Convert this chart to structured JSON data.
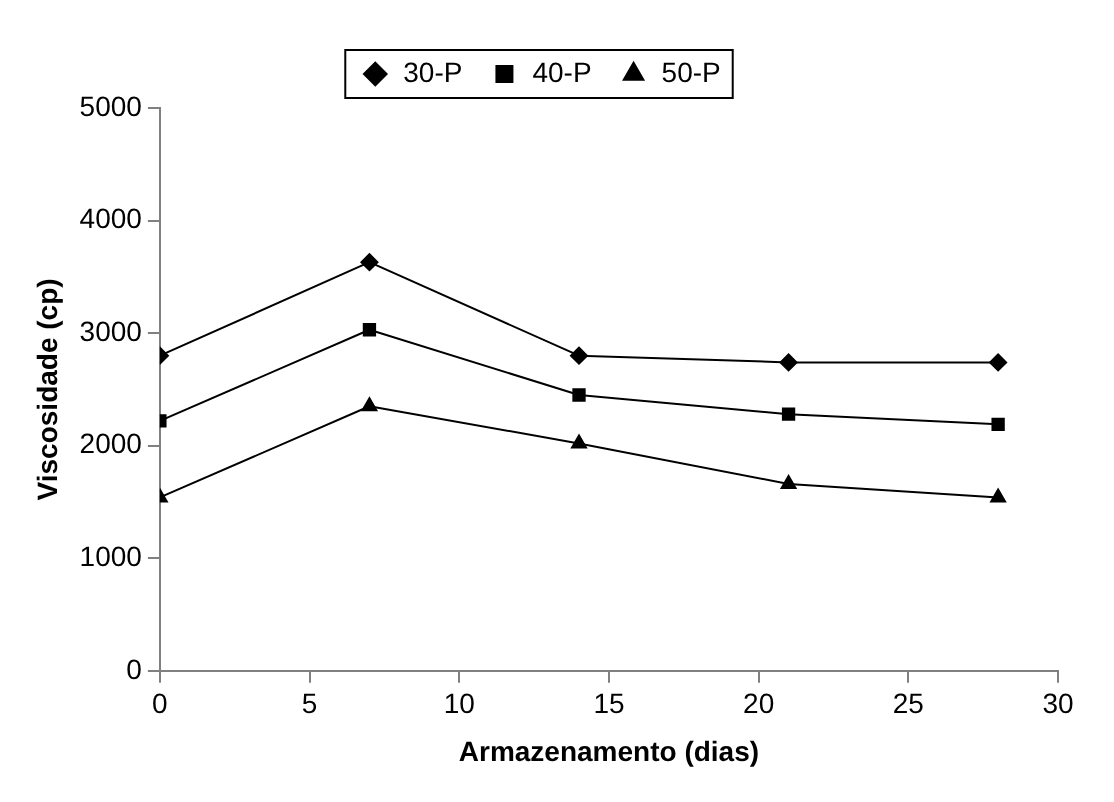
{
  "chart_data": {
    "type": "line",
    "xlabel": "Armazenamento (dias)",
    "ylabel": "Viscosidade (cp)",
    "x": [
      0,
      7,
      14,
      21,
      28
    ],
    "series": [
      {
        "name": "30-P",
        "color": "#000000",
        "marker": "diamond",
        "values": [
          2800,
          3630,
          2800,
          2740,
          2740
        ]
      },
      {
        "name": "40-P",
        "color": "#000000",
        "marker": "square",
        "values": [
          2220,
          3030,
          2450,
          2280,
          2190
        ]
      },
      {
        "name": "50-P",
        "color": "#000000",
        "marker": "triangle",
        "values": [
          1540,
          2350,
          2020,
          1660,
          1540
        ]
      }
    ],
    "xlim": [
      0,
      30
    ],
    "xticks": [
      0,
      5,
      10,
      15,
      20,
      25,
      30
    ],
    "ylim": [
      0,
      5000
    ],
    "yticks": [
      0,
      1000,
      2000,
      3000,
      4000,
      5000
    ],
    "grid": false,
    "legend": "top",
    "line_style": "solid"
  }
}
